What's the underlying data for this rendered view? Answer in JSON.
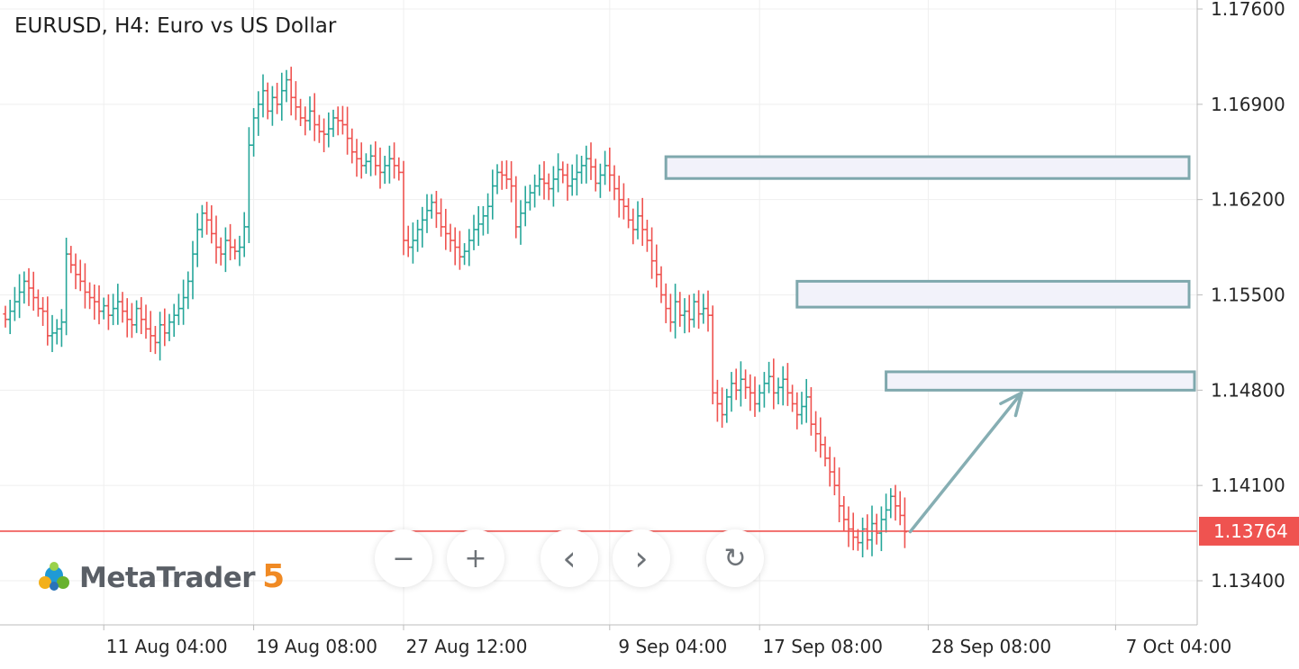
{
  "chart_title": "EURUSD, H4: Euro vs US Dollar",
  "logo": {
    "brand": "MetaTrader",
    "version": "5"
  },
  "controls": [
    {
      "name": "zoom-out-button",
      "glyph": "−"
    },
    {
      "name": "zoom-in-button",
      "glyph": "+"
    },
    {
      "name": "scroll-left-button",
      "glyph": "‹"
    },
    {
      "name": "scroll-right-button",
      "glyph": "›"
    },
    {
      "name": "reset-chart-button",
      "glyph": "↻"
    }
  ],
  "colors": {
    "bull": "#26a69a",
    "bear": "#ef5350",
    "zone_border": "#7fa8ad",
    "zone_fill": "#f2f2fa",
    "current_price": "#ef5350",
    "arrow": "#86aeb3"
  },
  "chart_data": {
    "type": "candlestick",
    "symbol": "EURUSD",
    "timeframe": "H4",
    "y_ticks": [
      "1.17600",
      "1.16900",
      "1.16200",
      "1.15500",
      "1.14800",
      "1.14100",
      "1.13400"
    ],
    "ylim": [
      1.1305,
      1.1785
    ],
    "x_ticks": [
      "11 Aug 04:00",
      "19 Aug 08:00",
      "27 Aug 12:00",
      "9 Sep 04:00",
      "17 Sep 08:00",
      "28 Sep 08:00",
      "7 Oct 04:00"
    ],
    "current_price": "1.13764",
    "current_price_value": 1.13764,
    "closes": [
      1.1532,
      1.1538,
      1.1545,
      1.1552,
      1.156,
      1.1555,
      1.1548,
      1.154,
      1.1538,
      1.152,
      1.1522,
      1.1525,
      1.153,
      1.158,
      1.1572,
      1.1565,
      1.156,
      1.1552,
      1.1548,
      1.1545,
      1.1538,
      1.1542,
      1.1535,
      1.154,
      1.1545,
      1.1538,
      1.1532,
      1.1528,
      1.154,
      1.1532,
      1.1525,
      1.152,
      1.1515,
      1.1528,
      1.1522,
      1.153,
      1.1535,
      1.154,
      1.1548,
      1.156,
      1.158,
      1.1598,
      1.161,
      1.1605,
      1.1595,
      1.1585,
      1.158,
      1.159,
      1.1585,
      1.1582,
      1.1585,
      1.16,
      1.166,
      1.168,
      1.169,
      1.17,
      1.1685,
      1.1695,
      1.169,
      1.17,
      1.1708,
      1.1695,
      1.1688,
      1.168,
      1.1678,
      1.1685,
      1.1675,
      1.167,
      1.1668,
      1.1672,
      1.168,
      1.1678,
      1.1675,
      1.1665,
      1.1655,
      1.165,
      1.1645,
      1.1648,
      1.1652,
      1.1645,
      1.164,
      1.1645,
      1.165,
      1.1645,
      1.164,
      1.159,
      1.1585,
      1.159,
      1.1598,
      1.1605,
      1.1612,
      1.1618,
      1.161,
      1.16,
      1.1595,
      1.159,
      1.1585,
      1.1578,
      1.1582,
      1.159,
      1.1598,
      1.1602,
      1.1608,
      1.1615,
      1.163,
      1.164,
      1.1638,
      1.1635,
      1.163,
      1.16,
      1.161,
      1.1618,
      1.1625,
      1.163,
      1.1635,
      1.1632,
      1.1628,
      1.1635,
      1.1642,
      1.1638,
      1.163,
      1.1635,
      1.164,
      1.1645,
      1.165,
      1.1644,
      1.1632,
      1.1638,
      1.1645,
      1.1638,
      1.1628,
      1.162,
      1.1615,
      1.1605,
      1.1598,
      1.1608,
      1.1598,
      1.159,
      1.1575,
      1.1565,
      1.155,
      1.154,
      1.153,
      1.1545,
      1.1535,
      1.1538,
      1.1532,
      1.1545,
      1.1536,
      1.154,
      1.1535,
      1.1478,
      1.147,
      1.1462,
      1.1475,
      1.1485,
      1.148,
      1.1488,
      1.1482,
      1.1478,
      1.147,
      1.1478,
      1.1485,
      1.149,
      1.1478,
      1.1482,
      1.1488,
      1.1478,
      1.147,
      1.1462,
      1.1468,
      1.1475,
      1.1455,
      1.1448,
      1.144,
      1.143,
      1.142,
      1.141,
      1.1395,
      1.1385,
      1.1378,
      1.1372,
      1.1368,
      1.1378,
      1.137,
      1.1382,
      1.1375,
      1.1385,
      1.1392,
      1.1402,
      1.1395,
      1.1388,
      1.1376
    ],
    "support_resistance_zones": [
      {
        "label": "",
        "top": 1.16515,
        "bottom": 1.16355,
        "from_index": 141,
        "extends_right": true
      },
      {
        "label": "",
        "top": 1.156,
        "bottom": 1.1541,
        "from_index": 169,
        "extends_right": true
      },
      {
        "label": "",
        "top": 1.14935,
        "bottom": 1.148,
        "from_index": 188,
        "extends_right": true
      }
    ],
    "projection_arrow": {
      "from_price": 1.1376,
      "to_price": 1.1478
    }
  }
}
